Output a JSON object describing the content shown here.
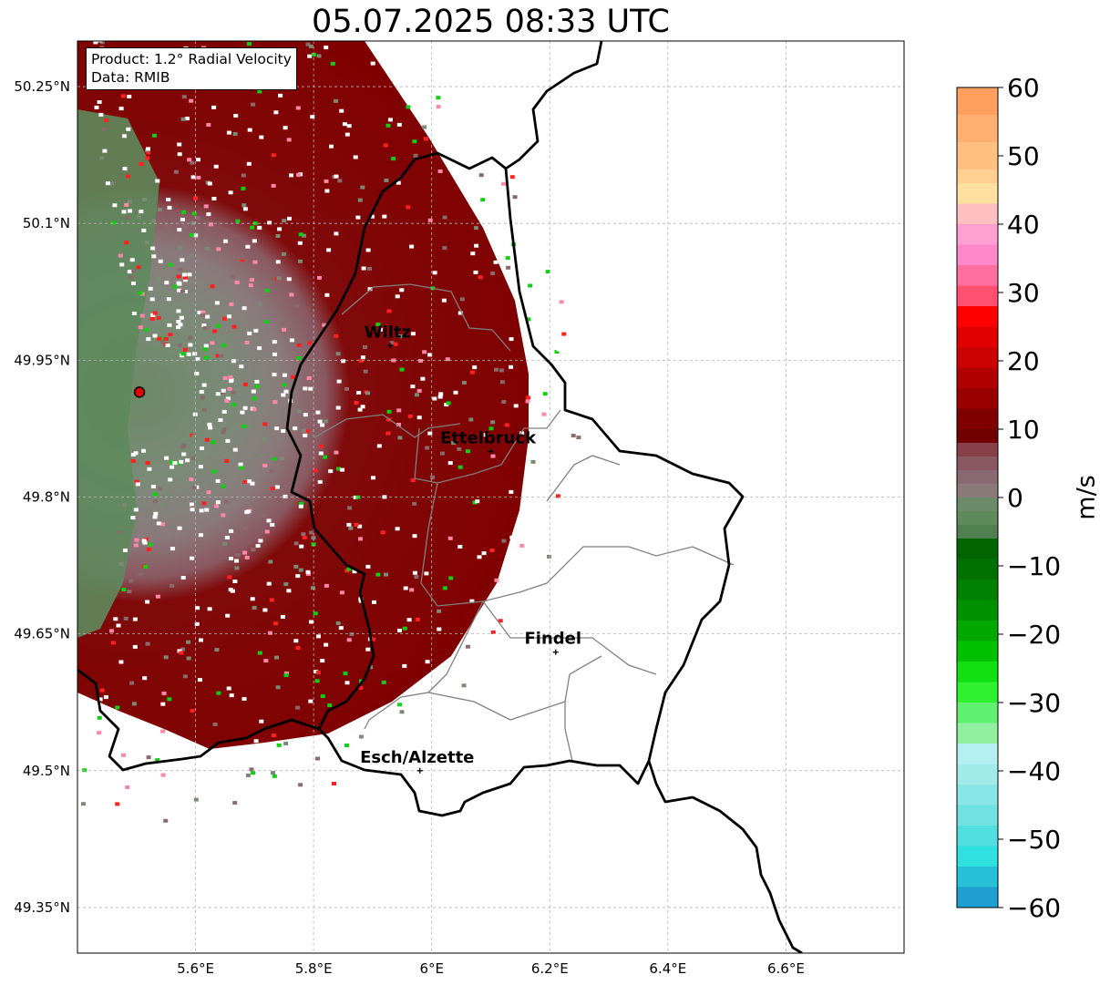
{
  "title": "05.07.2025 08:33 UTC",
  "info": {
    "product": "Product: 1.2° Radial Velocity",
    "source": "Data: RMIB"
  },
  "map": {
    "lon_range": [
      5.4,
      6.8
    ],
    "lat_range": [
      49.3,
      50.3
    ],
    "lon_ticks": [
      "5.6°E",
      "5.8°E",
      "6°E",
      "6.2°E",
      "6.4°E",
      "6.6°E"
    ],
    "lat_ticks": [
      "50.25°N",
      "50.1°N",
      "49.95°N",
      "49.8°N",
      "49.65°N",
      "49.5°N",
      "49.35°N"
    ],
    "grid": true,
    "radar_site": {
      "lon": 5.505,
      "lat": 49.915,
      "marker_color": "#e00000"
    },
    "cities": [
      {
        "name": "Wiltz",
        "lon": 5.93,
        "lat": 49.966
      },
      {
        "name": "Ettelbruck",
        "lon": 6.1,
        "lat": 49.85
      },
      {
        "name": "Findel",
        "lon": 6.21,
        "lat": 49.63
      },
      {
        "name": "Esch/Alzette",
        "lon": 5.98,
        "lat": 49.5
      }
    ]
  },
  "colorbar": {
    "unit": "m/s",
    "min": -60,
    "max": 60,
    "tick_labels": [
      "60",
      "50",
      "40",
      "30",
      "20",
      "10",
      "0",
      "−10",
      "−20",
      "−30",
      "−40",
      "−50",
      "−60"
    ],
    "colors": {
      "deep_blue": "#1f77c0",
      "cyan": "#2ee0e0",
      "light_cyan": "#b4f0f0",
      "light_green": "#90f0a0",
      "green": "#10e010",
      "dark_green": "#006400",
      "gray_green": "#5a8a5a",
      "gray": "#8a7a7a",
      "maroon": "#800000",
      "red": "#ff0000",
      "pink": "#ff88cc",
      "peach": "#ffe0a0",
      "orange": "#ffa060"
    }
  }
}
